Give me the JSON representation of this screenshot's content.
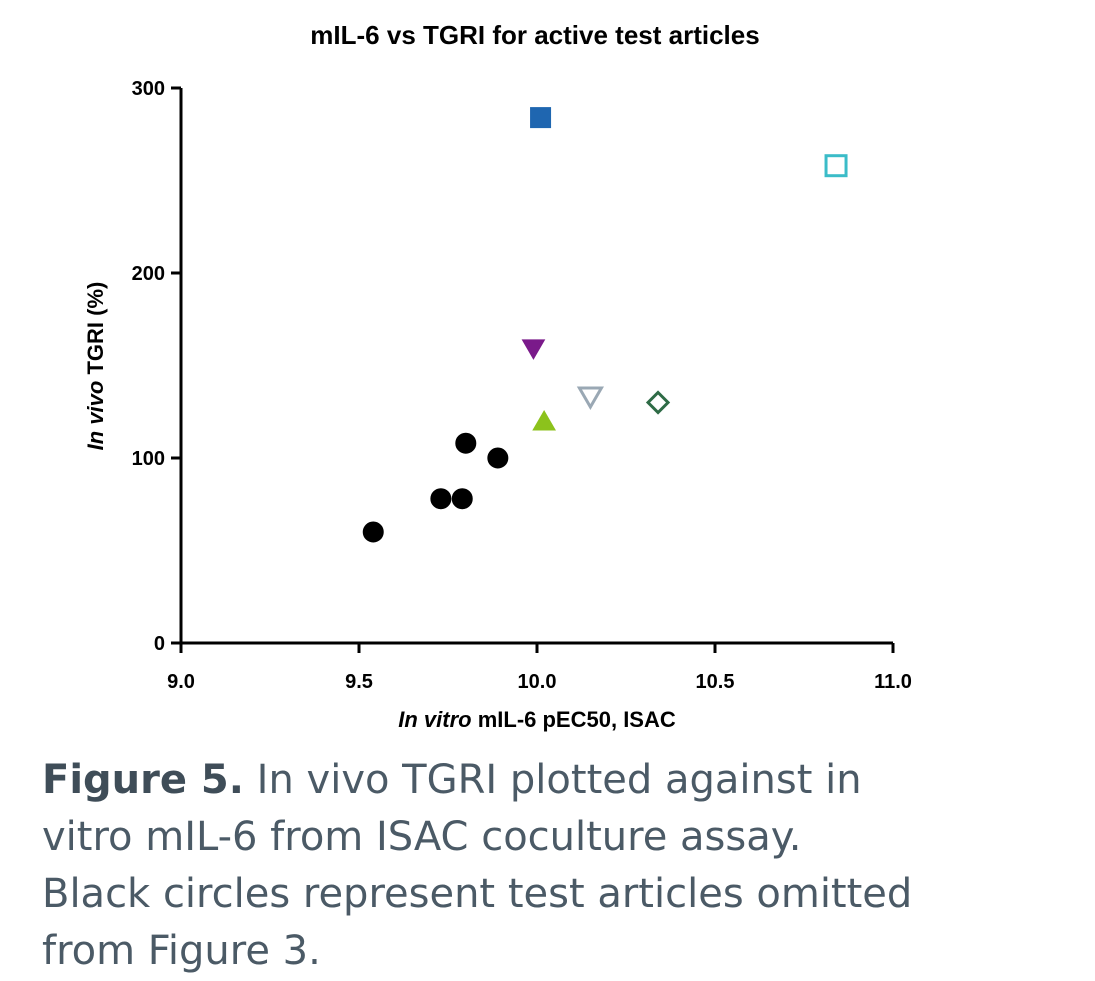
{
  "chart_data": {
    "type": "scatter",
    "title": "mIL-6 vs TGRI for active test articles",
    "xlabel": {
      "italic": "In vitro",
      "rest": " mIL-6 pEC50, ISAC"
    },
    "ylabel": {
      "italic": "In vivo",
      "rest": " TGRI (%)"
    },
    "xlim": [
      9.0,
      11.0
    ],
    "xticks": [
      {
        "value": 9.0,
        "label": "9.0"
      },
      {
        "value": 9.5,
        "label": "9.5"
      },
      {
        "value": 10.0,
        "label": "10.0"
      },
      {
        "value": 10.5,
        "label": "10.5"
      },
      {
        "value": 11.0,
        "label": "11.0"
      }
    ],
    "ylim": [
      0,
      300
    ],
    "yticks": [
      0,
      100,
      200,
      300
    ],
    "grid": false,
    "series": [
      {
        "marker": "circle",
        "filled": true,
        "color": "#000000",
        "x": [
          9.54,
          9.73,
          9.79,
          9.8,
          9.89
        ],
        "values": [
          60,
          78,
          78,
          108,
          100
        ]
      },
      {
        "marker": "square",
        "filled": true,
        "color": "#1f66b0",
        "x": [
          10.01
        ],
        "values": [
          284
        ]
      },
      {
        "marker": "square",
        "filled": false,
        "color": "#3bbcc8",
        "x": [
          10.84
        ],
        "values": [
          258
        ]
      },
      {
        "marker": "triangle-down",
        "filled": true,
        "color": "#7a1a8a",
        "x": [
          9.99
        ],
        "values": [
          159
        ]
      },
      {
        "marker": "triangle-down",
        "filled": false,
        "color": "#9aa8b4",
        "x": [
          10.15
        ],
        "values": [
          133
        ]
      },
      {
        "marker": "triangle-up",
        "filled": true,
        "color": "#8cc21c",
        "x": [
          10.02
        ],
        "values": [
          120
        ]
      },
      {
        "marker": "diamond",
        "filled": false,
        "color": "#2e6b46",
        "x": [
          10.34
        ],
        "values": [
          130
        ]
      }
    ]
  },
  "caption": {
    "label": "Figure 5.",
    "lines": [
      " In vivo TGRI plotted against in",
      "vitro mIL-6 from ISAC coculture assay.",
      "Black circles represent test articles omitted",
      "from Figure 3."
    ]
  }
}
